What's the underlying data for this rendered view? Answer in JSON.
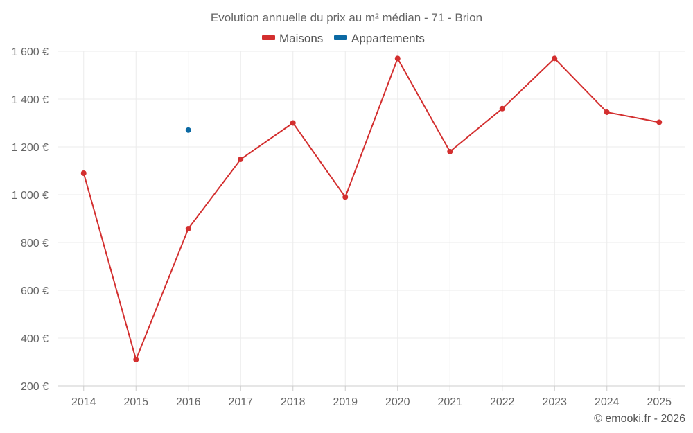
{
  "chart_data": {
    "type": "line",
    "title": "Evolution annuelle du prix au m² médian - 71 - Brion",
    "categories": [
      "2014",
      "2015",
      "2016",
      "2017",
      "2018",
      "2019",
      "2020",
      "2021",
      "2022",
      "2023",
      "2024",
      "2025"
    ],
    "ylim": [
      200,
      1600
    ],
    "yticks": [
      200,
      400,
      600,
      800,
      1000,
      1200,
      1400,
      1600
    ],
    "ytick_labels": [
      "200 €",
      "400 €",
      "600 €",
      "800 €",
      "1 000 €",
      "1 200 €",
      "1 400 €",
      "1 600 €"
    ],
    "series": [
      {
        "name": "Maisons",
        "color": "#d32f2f",
        "values": [
          1090,
          310,
          858,
          1148,
          1300,
          990,
          1570,
          1180,
          1360,
          1570,
          1345,
          1303
        ]
      },
      {
        "name": "Appartements",
        "color": "#0b69a3",
        "values": [
          null,
          null,
          1270,
          null,
          null,
          null,
          null,
          null,
          null,
          null,
          null,
          null
        ]
      }
    ],
    "grid": true,
    "legend": "top-center",
    "xlabel": "",
    "ylabel": ""
  },
  "credit": "© emooki.fr - 2026"
}
